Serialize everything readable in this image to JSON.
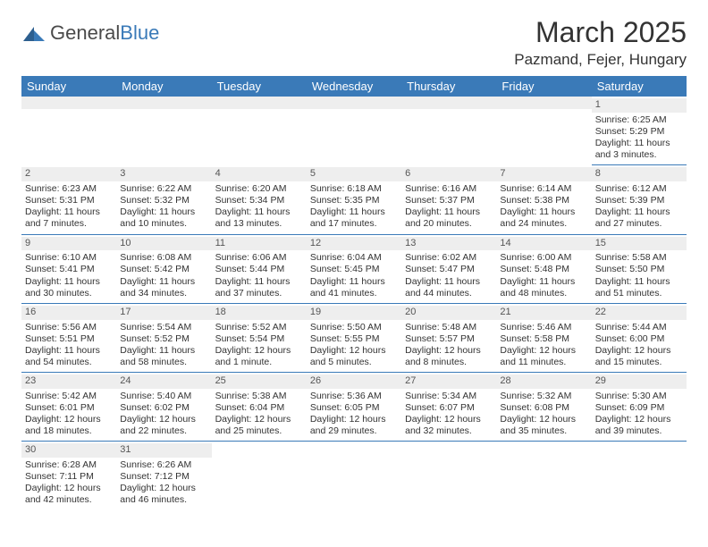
{
  "logo": {
    "text1": "General",
    "text2": "Blue"
  },
  "title": "March 2025",
  "location": "Pazmand, Fejer, Hungary",
  "colors": {
    "header_bg": "#3a7ab8",
    "header_fg": "#ffffff",
    "daynum_bg": "#eeeeee",
    "border": "#3a7ab8"
  },
  "days_of_week": [
    "Sunday",
    "Monday",
    "Tuesday",
    "Wednesday",
    "Thursday",
    "Friday",
    "Saturday"
  ],
  "weeks": [
    [
      {
        "blank": true
      },
      {
        "blank": true
      },
      {
        "blank": true
      },
      {
        "blank": true
      },
      {
        "blank": true
      },
      {
        "blank": true
      },
      {
        "n": "1",
        "sr": "Sunrise: 6:25 AM",
        "ss": "Sunset: 5:29 PM",
        "d1": "Daylight: 11 hours",
        "d2": "and 3 minutes."
      }
    ],
    [
      {
        "n": "2",
        "sr": "Sunrise: 6:23 AM",
        "ss": "Sunset: 5:31 PM",
        "d1": "Daylight: 11 hours",
        "d2": "and 7 minutes."
      },
      {
        "n": "3",
        "sr": "Sunrise: 6:22 AM",
        "ss": "Sunset: 5:32 PM",
        "d1": "Daylight: 11 hours",
        "d2": "and 10 minutes."
      },
      {
        "n": "4",
        "sr": "Sunrise: 6:20 AM",
        "ss": "Sunset: 5:34 PM",
        "d1": "Daylight: 11 hours",
        "d2": "and 13 minutes."
      },
      {
        "n": "5",
        "sr": "Sunrise: 6:18 AM",
        "ss": "Sunset: 5:35 PM",
        "d1": "Daylight: 11 hours",
        "d2": "and 17 minutes."
      },
      {
        "n": "6",
        "sr": "Sunrise: 6:16 AM",
        "ss": "Sunset: 5:37 PM",
        "d1": "Daylight: 11 hours",
        "d2": "and 20 minutes."
      },
      {
        "n": "7",
        "sr": "Sunrise: 6:14 AM",
        "ss": "Sunset: 5:38 PM",
        "d1": "Daylight: 11 hours",
        "d2": "and 24 minutes."
      },
      {
        "n": "8",
        "sr": "Sunrise: 6:12 AM",
        "ss": "Sunset: 5:39 PM",
        "d1": "Daylight: 11 hours",
        "d2": "and 27 minutes."
      }
    ],
    [
      {
        "n": "9",
        "sr": "Sunrise: 6:10 AM",
        "ss": "Sunset: 5:41 PM",
        "d1": "Daylight: 11 hours",
        "d2": "and 30 minutes."
      },
      {
        "n": "10",
        "sr": "Sunrise: 6:08 AM",
        "ss": "Sunset: 5:42 PM",
        "d1": "Daylight: 11 hours",
        "d2": "and 34 minutes."
      },
      {
        "n": "11",
        "sr": "Sunrise: 6:06 AM",
        "ss": "Sunset: 5:44 PM",
        "d1": "Daylight: 11 hours",
        "d2": "and 37 minutes."
      },
      {
        "n": "12",
        "sr": "Sunrise: 6:04 AM",
        "ss": "Sunset: 5:45 PM",
        "d1": "Daylight: 11 hours",
        "d2": "and 41 minutes."
      },
      {
        "n": "13",
        "sr": "Sunrise: 6:02 AM",
        "ss": "Sunset: 5:47 PM",
        "d1": "Daylight: 11 hours",
        "d2": "and 44 minutes."
      },
      {
        "n": "14",
        "sr": "Sunrise: 6:00 AM",
        "ss": "Sunset: 5:48 PM",
        "d1": "Daylight: 11 hours",
        "d2": "and 48 minutes."
      },
      {
        "n": "15",
        "sr": "Sunrise: 5:58 AM",
        "ss": "Sunset: 5:50 PM",
        "d1": "Daylight: 11 hours",
        "d2": "and 51 minutes."
      }
    ],
    [
      {
        "n": "16",
        "sr": "Sunrise: 5:56 AM",
        "ss": "Sunset: 5:51 PM",
        "d1": "Daylight: 11 hours",
        "d2": "and 54 minutes."
      },
      {
        "n": "17",
        "sr": "Sunrise: 5:54 AM",
        "ss": "Sunset: 5:52 PM",
        "d1": "Daylight: 11 hours",
        "d2": "and 58 minutes."
      },
      {
        "n": "18",
        "sr": "Sunrise: 5:52 AM",
        "ss": "Sunset: 5:54 PM",
        "d1": "Daylight: 12 hours",
        "d2": "and 1 minute."
      },
      {
        "n": "19",
        "sr": "Sunrise: 5:50 AM",
        "ss": "Sunset: 5:55 PM",
        "d1": "Daylight: 12 hours",
        "d2": "and 5 minutes."
      },
      {
        "n": "20",
        "sr": "Sunrise: 5:48 AM",
        "ss": "Sunset: 5:57 PM",
        "d1": "Daylight: 12 hours",
        "d2": "and 8 minutes."
      },
      {
        "n": "21",
        "sr": "Sunrise: 5:46 AM",
        "ss": "Sunset: 5:58 PM",
        "d1": "Daylight: 12 hours",
        "d2": "and 11 minutes."
      },
      {
        "n": "22",
        "sr": "Sunrise: 5:44 AM",
        "ss": "Sunset: 6:00 PM",
        "d1": "Daylight: 12 hours",
        "d2": "and 15 minutes."
      }
    ],
    [
      {
        "n": "23",
        "sr": "Sunrise: 5:42 AM",
        "ss": "Sunset: 6:01 PM",
        "d1": "Daylight: 12 hours",
        "d2": "and 18 minutes."
      },
      {
        "n": "24",
        "sr": "Sunrise: 5:40 AM",
        "ss": "Sunset: 6:02 PM",
        "d1": "Daylight: 12 hours",
        "d2": "and 22 minutes."
      },
      {
        "n": "25",
        "sr": "Sunrise: 5:38 AM",
        "ss": "Sunset: 6:04 PM",
        "d1": "Daylight: 12 hours",
        "d2": "and 25 minutes."
      },
      {
        "n": "26",
        "sr": "Sunrise: 5:36 AM",
        "ss": "Sunset: 6:05 PM",
        "d1": "Daylight: 12 hours",
        "d2": "and 29 minutes."
      },
      {
        "n": "27",
        "sr": "Sunrise: 5:34 AM",
        "ss": "Sunset: 6:07 PM",
        "d1": "Daylight: 12 hours",
        "d2": "and 32 minutes."
      },
      {
        "n": "28",
        "sr": "Sunrise: 5:32 AM",
        "ss": "Sunset: 6:08 PM",
        "d1": "Daylight: 12 hours",
        "d2": "and 35 minutes."
      },
      {
        "n": "29",
        "sr": "Sunrise: 5:30 AM",
        "ss": "Sunset: 6:09 PM",
        "d1": "Daylight: 12 hours",
        "d2": "and 39 minutes."
      }
    ],
    [
      {
        "n": "30",
        "sr": "Sunrise: 6:28 AM",
        "ss": "Sunset: 7:11 PM",
        "d1": "Daylight: 12 hours",
        "d2": "and 42 minutes."
      },
      {
        "n": "31",
        "sr": "Sunrise: 6:26 AM",
        "ss": "Sunset: 7:12 PM",
        "d1": "Daylight: 12 hours",
        "d2": "and 46 minutes."
      },
      {
        "blank": true
      },
      {
        "blank": true
      },
      {
        "blank": true
      },
      {
        "blank": true
      },
      {
        "blank": true
      }
    ]
  ]
}
